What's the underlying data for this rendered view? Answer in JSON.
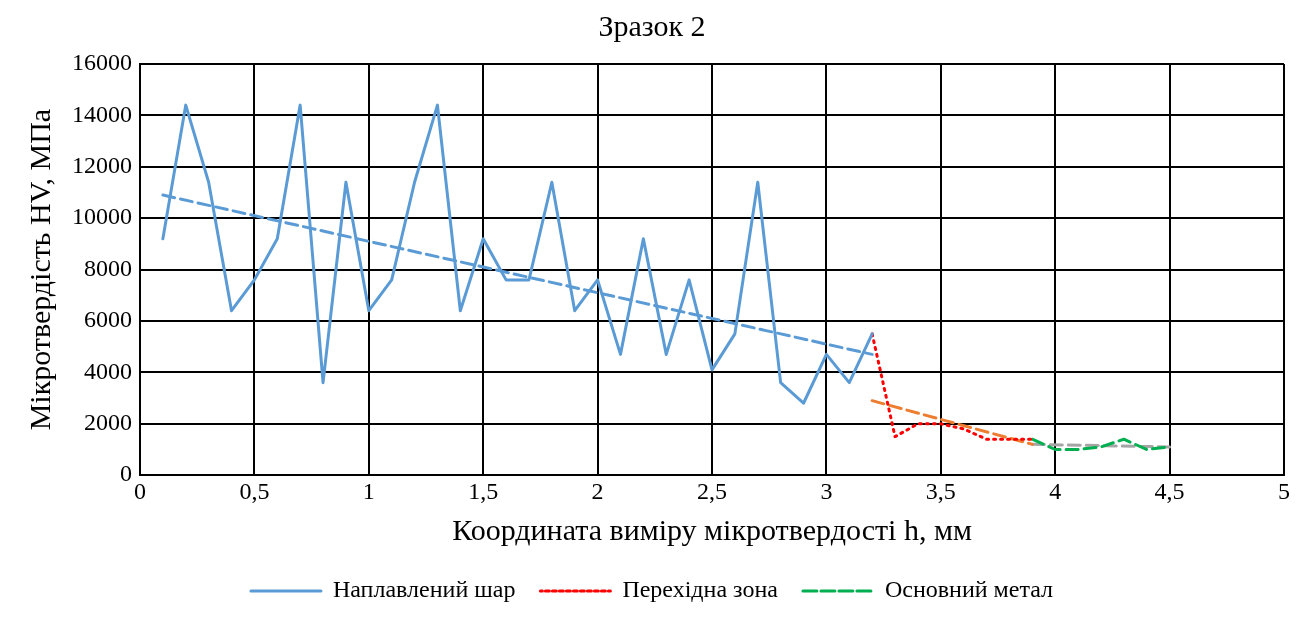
{
  "chart_data": {
    "type": "line",
    "title": "Зразок 2",
    "xlabel": "Координата виміру мікротвердості h, мм",
    "ylabel": "Мікротвердість HV, МПа",
    "xlim": [
      0,
      5
    ],
    "xticks": [
      0,
      {
        "value": 0.5,
        "label": "0,5"
      },
      1,
      {
        "value": 1.5,
        "label": "1,5"
      },
      2,
      {
        "value": 2.5,
        "label": "2,5"
      },
      3,
      {
        "value": 3.5,
        "label": "3,5"
      },
      4,
      {
        "value": 4.5,
        "label": "4,5"
      },
      5
    ],
    "ylim": [
      0,
      16000
    ],
    "yticks": [
      0,
      2000,
      4000,
      6000,
      8000,
      10000,
      12000,
      14000,
      16000
    ],
    "grid": true,
    "legend": "bottom",
    "marker": "none",
    "series": [
      {
        "name": "Наплавлений шар",
        "color": "#5b9bd5",
        "line_style": "solid",
        "x": [
          0.1,
          0.2,
          0.3,
          0.4,
          0.5,
          0.6,
          0.7,
          0.8,
          0.9,
          1.0,
          1.1,
          1.2,
          1.3,
          1.4,
          1.5,
          1.6,
          1.7,
          1.8,
          1.9,
          2.0,
          2.1,
          2.2,
          2.3,
          2.4,
          2.5,
          2.6,
          2.7,
          2.8,
          2.9,
          3.0,
          3.1,
          3.2
        ],
        "values": [
          9200,
          14400,
          11400,
          6400,
          7600,
          9200,
          14400,
          3600,
          11400,
          6400,
          7600,
          11400,
          14400,
          6400,
          9200,
          7600,
          7600,
          11400,
          6400,
          7600,
          4700,
          9200,
          4700,
          7600,
          4100,
          5500,
          11400,
          3600,
          2800,
          4700,
          3600,
          5500
        ]
      },
      {
        "name": "Перехідна зона",
        "color": "#ff0000",
        "line_style": "dotted",
        "x": [
          3.2,
          3.3,
          3.4,
          3.5,
          3.6,
          3.7,
          3.8,
          3.9
        ],
        "values": [
          5500,
          1500,
          2000,
          2000,
          1800,
          1400,
          1400,
          1400
        ]
      },
      {
        "name": "Основний метал",
        "color": "#00b050",
        "line_style": "dashed",
        "x": [
          3.9,
          4.0,
          4.1,
          4.2,
          4.3,
          4.4,
          4.5
        ],
        "values": [
          1400,
          1000,
          1000,
          1100,
          1400,
          1000,
          1100
        ]
      },
      {
        "type": "line",
        "color": "#5b9bd5",
        "line_style": "dashed",
        "x": [
          0.1,
          3.2
        ],
        "values": [
          10900,
          4700
        ]
      },
      {
        "type": "line",
        "color": "#ed7d31",
        "line_style": "dashed",
        "x": [
          3.2,
          3.9
        ],
        "values": [
          2900,
          1200
        ]
      },
      {
        "type": "line",
        "color": "#a5a5a5",
        "line_style": "dashed",
        "x": [
          3.9,
          4.5
        ],
        "values": [
          1200,
          1100
        ]
      }
    ]
  }
}
